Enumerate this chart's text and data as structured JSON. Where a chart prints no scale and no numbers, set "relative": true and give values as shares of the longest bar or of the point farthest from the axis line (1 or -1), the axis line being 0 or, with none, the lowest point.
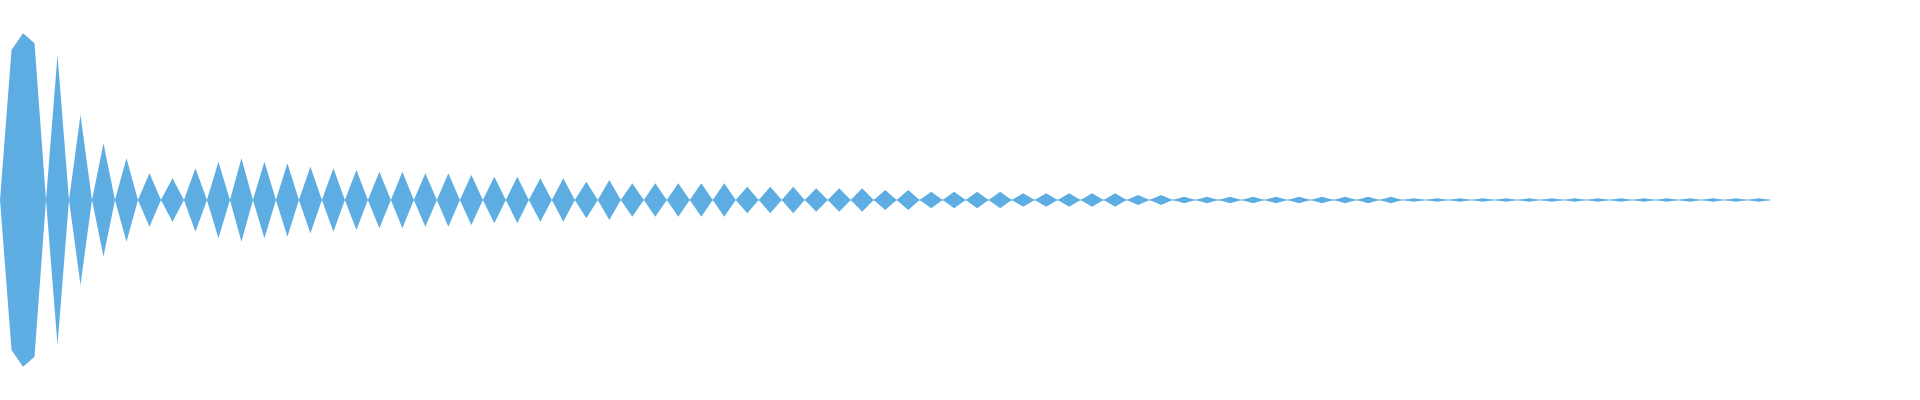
{
  "chart_data": {
    "type": "area",
    "relative": true,
    "categories": [
      null,
      null,
      null,
      null,
      null,
      null,
      null,
      null,
      null,
      null,
      null,
      null,
      null,
      null,
      null,
      null,
      null,
      null,
      null,
      null,
      null,
      null,
      null,
      null,
      null,
      null,
      null,
      null,
      null,
      null,
      null,
      null,
      null,
      null,
      null,
      null,
      null,
      null,
      null,
      null,
      null,
      null,
      null,
      null,
      null,
      null,
      null,
      null,
      null,
      null,
      null,
      null,
      null,
      null,
      null,
      null,
      null,
      null,
      null,
      null,
      null,
      null,
      null,
      null,
      null,
      null,
      null,
      null,
      null,
      null,
      null,
      null,
      null,
      null,
      null,
      null,
      null,
      null,
      null,
      null,
      null,
      null,
      null,
      null,
      null,
      null,
      null,
      null,
      null,
      null,
      null,
      null,
      null,
      null,
      null,
      null,
      null,
      null,
      null,
      null,
      null,
      null,
      null,
      null,
      null,
      null,
      null,
      null,
      null,
      null,
      null,
      null,
      null,
      null,
      null,
      null,
      null,
      null,
      null,
      null,
      null,
      null,
      null,
      null,
      null,
      null,
      null,
      null,
      null,
      null,
      null,
      null,
      null,
      null,
      null,
      null,
      null,
      null,
      null,
      null,
      null,
      null,
      null,
      null,
      null,
      null,
      null,
      null,
      null,
      null,
      null,
      null,
      null,
      null,
      null
    ],
    "series": [
      {
        "color": "#5dade2",
        "values": [
          0,
          0.9,
          1.0,
          0.94,
          0,
          0.87,
          0,
          0.51,
          0,
          0.34,
          0,
          0.25,
          0,
          0.16,
          0,
          0.13,
          0,
          0.19,
          0,
          0.23,
          0,
          0.25,
          0,
          0.23,
          0,
          0.22,
          0,
          0.2,
          0,
          0.19,
          0,
          0.18,
          0,
          0.17,
          0,
          0.17,
          0,
          0.16,
          0,
          0.16,
          0,
          0.15,
          0,
          0.14,
          0,
          0.14,
          0,
          0.13,
          0,
          0.13,
          0,
          0.11,
          0,
          0.12,
          0,
          0.1,
          0,
          0.1,
          0,
          0.1,
          0,
          0.1,
          0,
          0.1,
          0,
          0.08,
          0,
          0.08,
          0,
          0.08,
          0,
          0.07,
          0,
          0.07,
          0,
          0.07,
          0,
          0.06,
          0,
          0.06,
          0,
          0.05,
          0,
          0.05,
          0,
          0.05,
          0,
          0.05,
          0,
          0.04,
          0,
          0.04,
          0,
          0.04,
          0,
          0.04,
          0,
          0.04,
          0,
          0.03,
          0,
          0.03,
          0,
          0.02,
          0,
          0.02,
          0,
          0.02,
          0,
          0.02,
          0,
          0.02,
          0,
          0.02,
          0,
          0.02,
          0,
          0.02,
          0,
          0.02,
          0,
          0.02,
          0,
          0.01,
          0,
          0.01,
          0,
          0.01,
          0,
          0.01,
          0,
          0.01,
          0,
          0.01,
          0,
          0.01,
          0,
          0.01,
          0,
          0.01,
          0,
          0.01,
          0,
          0.01,
          0,
          0.01,
          0,
          0.01,
          0,
          0.01,
          0,
          0.01,
          0,
          0.01,
          0
        ]
      },
      {
        "color": "#5eaee3",
        "values": [
          0,
          -0.9,
          -1.0,
          -0.94,
          0,
          -0.87,
          0,
          -0.51,
          0,
          -0.34,
          0,
          -0.25,
          0,
          -0.16,
          0,
          -0.13,
          0,
          -0.19,
          0,
          -0.23,
          0,
          -0.25,
          0,
          -0.23,
          0,
          -0.22,
          0,
          -0.2,
          0,
          -0.19,
          0,
          -0.18,
          0,
          -0.17,
          0,
          -0.17,
          0,
          -0.16,
          0,
          -0.16,
          0,
          -0.15,
          0,
          -0.14,
          0,
          -0.14,
          0,
          -0.13,
          0,
          -0.13,
          0,
          -0.11,
          0,
          -0.12,
          0,
          -0.1,
          0,
          -0.1,
          0,
          -0.1,
          0,
          -0.1,
          0,
          -0.1,
          0,
          -0.08,
          0,
          -0.08,
          0,
          -0.08,
          0,
          -0.07,
          0,
          -0.07,
          0,
          -0.07,
          0,
          -0.06,
          0,
          -0.06,
          0,
          -0.05,
          0,
          -0.05,
          0,
          -0.05,
          0,
          -0.05,
          0,
          -0.04,
          0,
          -0.04,
          0,
          -0.04,
          0,
          -0.04,
          0,
          -0.04,
          0,
          -0.03,
          0,
          -0.03,
          0,
          -0.02,
          0,
          -0.02,
          0,
          -0.02,
          0,
          -0.02,
          0,
          -0.02,
          0,
          -0.02,
          0,
          -0.02,
          0,
          -0.02,
          0,
          -0.02,
          0,
          -0.02,
          0,
          -0.01,
          0,
          -0.01,
          0,
          -0.01,
          0,
          -0.01,
          0,
          -0.01,
          0,
          -0.01,
          0,
          -0.01,
          0,
          -0.01,
          0,
          -0.01,
          0,
          -0.01,
          0,
          -0.01,
          0,
          -0.01,
          0,
          -0.01,
          0,
          -0.01,
          0,
          -0.01,
          0,
          -0.01,
          0
        ]
      }
    ]
  }
}
